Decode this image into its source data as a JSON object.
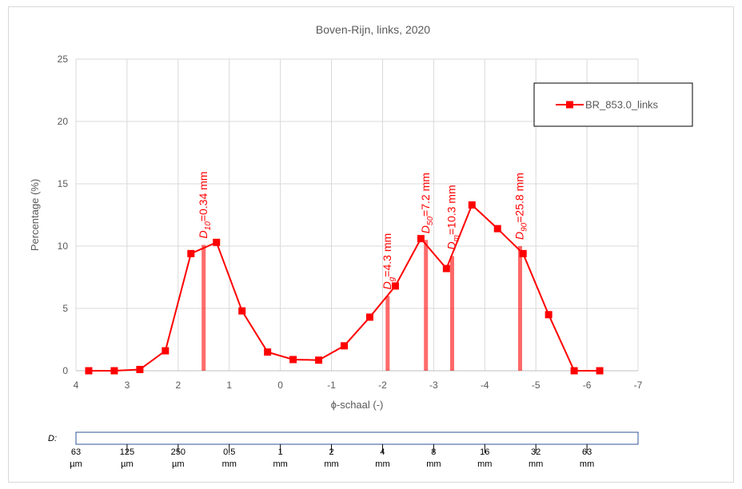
{
  "chart_data": {
    "type": "line",
    "title": "Boven-Rijn, links, 2020",
    "xlabel": "ϕ-schaal (-)",
    "ylabel": "Percentage (%)",
    "xlim": [
      4,
      -7
    ],
    "ylim": [
      0,
      25
    ],
    "x_ticks": [
      "4",
      "3",
      "2",
      "1",
      "0",
      "-1",
      "-2",
      "-3",
      "-4",
      "-5",
      "-6",
      "-7"
    ],
    "y_ticks": [
      "0",
      "5",
      "10",
      "15",
      "20",
      "25"
    ],
    "grid": true,
    "legend_position": "top-right",
    "series": [
      {
        "name": "BR_853.0_links",
        "color": "#ff0000",
        "marker": "square",
        "x": [
          3.75,
          3.25,
          2.75,
          2.25,
          1.75,
          1.25,
          0.75,
          0.25,
          -0.25,
          -0.75,
          -1.25,
          -1.75,
          -2.25,
          -2.75,
          -3.25,
          -3.75,
          -4.25,
          -4.75,
          -5.25,
          -5.75,
          -6.25
        ],
        "y": [
          0.0,
          0.0,
          0.1,
          1.6,
          9.4,
          10.3,
          4.8,
          1.5,
          0.9,
          0.85,
          2.0,
          4.3,
          6.8,
          10.6,
          8.2,
          13.3,
          11.4,
          9.4,
          4.5,
          0.0,
          0.0
        ]
      }
    ],
    "annotations": [
      {
        "x": 1.5,
        "height": 10.1,
        "main": "D",
        "sub": "10",
        "suffix": "=0.34 mm"
      },
      {
        "x": -2.1,
        "height": 6.0,
        "main": "D",
        "sub": "g",
        "suffix": "=4.3 mm"
      },
      {
        "x": -2.85,
        "height": 10.5,
        "main": "D",
        "sub": "50",
        "suffix": "=7.2 mm"
      },
      {
        "x": -3.36,
        "height": 9.2,
        "main": "D",
        "sub": "m",
        "suffix": "=10.3 mm"
      },
      {
        "x": -4.69,
        "height": 10.0,
        "main": "D",
        "sub": "90",
        "suffix": "=25.8 mm"
      }
    ]
  },
  "scale": {
    "label": "D:",
    "entries": [
      {
        "value": "63",
        "unit": "µm",
        "phi": 4
      },
      {
        "value": "125",
        "unit": "µm",
        "phi": 3
      },
      {
        "value": "250",
        "unit": "µm",
        "phi": 2
      },
      {
        "value": "0.5",
        "unit": "mm",
        "phi": 1
      },
      {
        "value": "1",
        "unit": "mm",
        "phi": 0
      },
      {
        "value": "2",
        "unit": "mm",
        "phi": -1
      },
      {
        "value": "4",
        "unit": "mm",
        "phi": -2
      },
      {
        "value": "8",
        "unit": "mm",
        "phi": -3
      },
      {
        "value": "16",
        "unit": "mm",
        "phi": -4
      },
      {
        "value": "32",
        "unit": "mm",
        "phi": -5
      },
      {
        "value": "63",
        "unit": "mm",
        "phi": -6
      }
    ]
  }
}
